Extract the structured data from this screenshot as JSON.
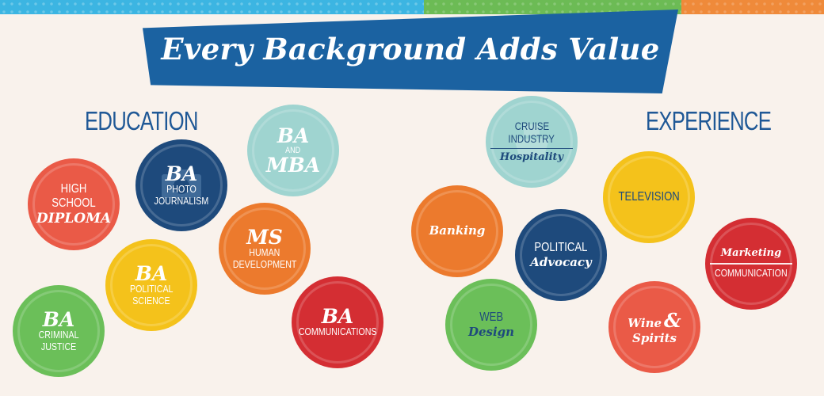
{
  "banner": {
    "title": "Every Background Adds Value"
  },
  "colors": {
    "red": "#ea5a47",
    "navy": "#1e4a7c",
    "teal": "#9fd4d0",
    "orange": "#ec7a2d",
    "yellow": "#f4c21b",
    "green": "#6bbf59",
    "crimson": "#d42e33",
    "background": "#f9f2ec"
  },
  "education": {
    "label": "EDUCATION",
    "high_school": {
      "line1": "HIGH SCHOOL",
      "line2": "DIPLOMA"
    },
    "ba_photo": {
      "big": "BA",
      "line1": "PHOTO",
      "line2": "JOURNALISM",
      "icon": "camera-icon"
    },
    "ba_mba": {
      "big1": "BA",
      "small": "AND",
      "big2": "MBA"
    },
    "ms_human": {
      "big": "MS",
      "line1": "HUMAN",
      "line2": "DEVELOPMENT"
    },
    "ba_polisci": {
      "big": "BA",
      "line1": "POLITICAL",
      "line2": "SCIENCE"
    },
    "ba_criminal": {
      "big": "BA",
      "line1": "CRIMINAL",
      "line2": "JUSTICE"
    },
    "ba_comm": {
      "big": "BA",
      "line1": "COMMUNICATIONS"
    }
  },
  "experience": {
    "label": "EXPERIENCE",
    "cruise": {
      "line1": "CRUISE",
      "line2": "INDUSTRY",
      "line3": "Hospitality",
      "icon": "ship-icon"
    },
    "television": {
      "line1": "TELEVISION"
    },
    "banking": {
      "line1": "Banking"
    },
    "political_advocacy": {
      "line1": "POLITICAL",
      "line2": "Advocacy"
    },
    "marketing": {
      "line1": "Marketing",
      "line2": "COMMUNICATION"
    },
    "web_design": {
      "line1": "WEB",
      "line2": "Design"
    },
    "wine": {
      "line1": "Wine",
      "amp": "&",
      "line2": "Spirits"
    }
  }
}
